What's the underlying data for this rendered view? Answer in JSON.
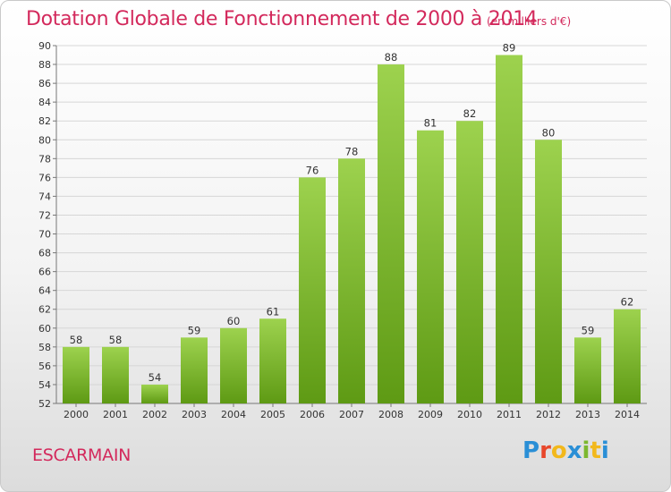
{
  "header": {
    "title": "Dotation Globale de Fonctionnement de 2000 à 2014",
    "subtitle": "(en milliers d'€)"
  },
  "footer": {
    "place": "ESCARMAIN",
    "logo_text": "Proxiti"
  },
  "colors": {
    "title": "#d3295c",
    "bar_light": "#9dd24e",
    "bar_dark": "#5e9a14",
    "logo": [
      "#2a8fd6",
      "#e8472b",
      "#f2b81c",
      "#2a8fd6",
      "#7cb82f",
      "#f2b81c",
      "#2a8fd6"
    ]
  },
  "chart_data": {
    "type": "bar",
    "categories": [
      "2000",
      "2001",
      "2002",
      "2003",
      "2004",
      "2005",
      "2006",
      "2007",
      "2008",
      "2009",
      "2010",
      "2011",
      "2012",
      "2013",
      "2014"
    ],
    "values": [
      58,
      58,
      54,
      59,
      60,
      61,
      76,
      78,
      88,
      81,
      82,
      89,
      80,
      59,
      62
    ],
    "ylim": [
      52,
      90
    ],
    "yticks": [
      52,
      54,
      56,
      58,
      60,
      62,
      64,
      66,
      68,
      70,
      72,
      74,
      76,
      78,
      80,
      82,
      84,
      86,
      88,
      90
    ],
    "grid": true,
    "legend": "none",
    "title": "Dotation Globale de Fonctionnement de 2000 à 2014",
    "subtitle": "(en milliers d'€)",
    "xlabel": "",
    "ylabel": ""
  }
}
